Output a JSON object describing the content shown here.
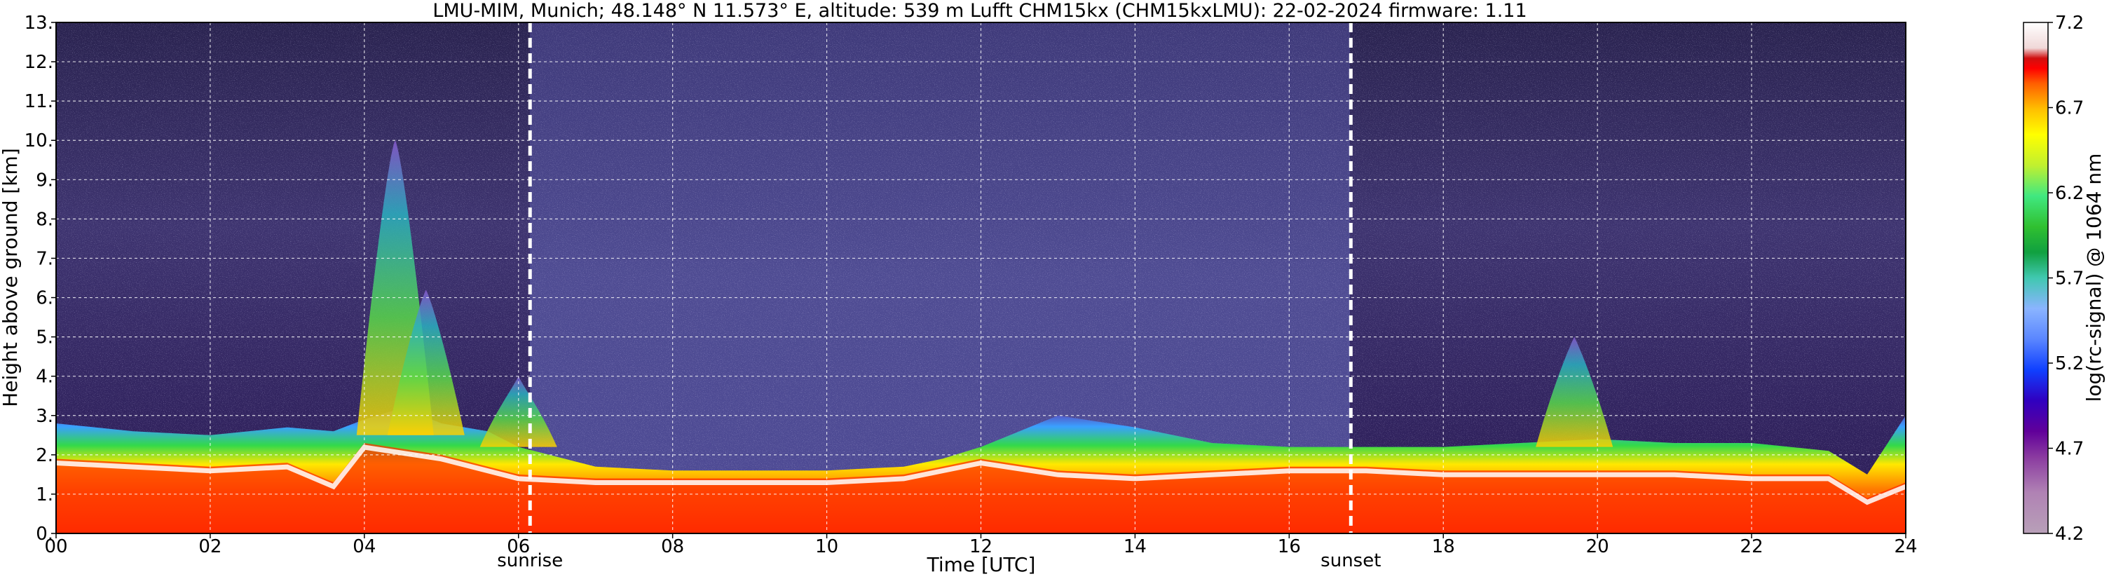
{
  "chart_data": {
    "type": "heatmap",
    "title": "LMU-MIM, Munich; 48.148° N 11.573° E, altitude: 539 m    Lufft CHM15kx (CHM15kxLMU): 22-02-2024    firmware: 1.11",
    "xlabel": "Time [UTC]",
    "ylabel": "Height above ground [km]",
    "x_ticks": [
      "00",
      "02",
      "04",
      "06",
      "08",
      "10",
      "12",
      "14",
      "16",
      "18",
      "20",
      "22",
      "24"
    ],
    "y_ticks": [
      "0.",
      "1.",
      "2.",
      "3.",
      "4.",
      "5.",
      "6.",
      "7.",
      "8.",
      "9.",
      "10.",
      "11.",
      "12.",
      "13."
    ],
    "xlim": [
      0,
      24
    ],
    "ylim": [
      0,
      13
    ],
    "grid": true,
    "events": [
      {
        "label": "sunrise",
        "time": 6.15
      },
      {
        "label": "sunset",
        "time": 16.8
      }
    ],
    "colorbar": {
      "label": "log(rc-signal) @ 1064 nm",
      "range": [
        4.2,
        7.2
      ],
      "ticks": [
        "4.2",
        "4.7",
        "5.2",
        "5.7",
        "6.2",
        "6.7",
        "7.2"
      ]
    },
    "boundary_layer_top_km": [
      [
        0,
        2.8
      ],
      [
        1,
        2.6
      ],
      [
        2,
        2.5
      ],
      [
        3,
        2.7
      ],
      [
        3.6,
        2.6
      ],
      [
        4,
        2.9
      ],
      [
        4.5,
        3.2
      ],
      [
        5,
        2.8
      ],
      [
        5.6,
        2.6
      ],
      [
        6,
        2.2
      ],
      [
        7,
        1.7
      ],
      [
        8,
        1.6
      ],
      [
        9,
        1.6
      ],
      [
        10,
        1.6
      ],
      [
        11,
        1.7
      ],
      [
        11.5,
        1.9
      ],
      [
        12,
        2.2
      ],
      [
        12.5,
        2.6
      ],
      [
        13,
        3.0
      ],
      [
        14,
        2.7
      ],
      [
        15,
        2.3
      ],
      [
        16,
        2.2
      ],
      [
        17,
        2.2
      ],
      [
        18,
        2.2
      ],
      [
        19,
        2.3
      ],
      [
        20,
        2.4
      ],
      [
        21,
        2.3
      ],
      [
        22,
        2.3
      ],
      [
        23,
        2.1
      ],
      [
        23.5,
        1.5
      ],
      [
        24,
        3.0
      ]
    ],
    "aerosol_layer_top_km": [
      [
        0,
        1.9
      ],
      [
        1,
        1.8
      ],
      [
        2,
        1.7
      ],
      [
        3,
        1.8
      ],
      [
        3.6,
        1.3
      ],
      [
        4,
        2.3
      ],
      [
        5,
        2.0
      ],
      [
        6,
        1.5
      ],
      [
        7,
        1.4
      ],
      [
        8,
        1.4
      ],
      [
        9,
        1.4
      ],
      [
        10,
        1.4
      ],
      [
        11,
        1.5
      ],
      [
        12,
        1.9
      ],
      [
        13,
        1.6
      ],
      [
        14,
        1.5
      ],
      [
        15,
        1.6
      ],
      [
        16,
        1.7
      ],
      [
        17,
        1.7
      ],
      [
        18,
        1.6
      ],
      [
        19,
        1.6
      ],
      [
        20,
        1.6
      ],
      [
        21,
        1.6
      ],
      [
        22,
        1.5
      ],
      [
        23,
        1.5
      ],
      [
        23.5,
        0.9
      ],
      [
        24,
        1.3
      ]
    ],
    "plumes": [
      {
        "x": 4.4,
        "base_km": 2.5,
        "top_km": 10.0
      },
      {
        "x": 4.8,
        "base_km": 2.5,
        "top_km": 6.2
      },
      {
        "x": 19.7,
        "base_km": 2.2,
        "top_km": 5.0
      },
      {
        "x": 6.0,
        "base_km": 2.2,
        "top_km": 4.0
      }
    ]
  }
}
